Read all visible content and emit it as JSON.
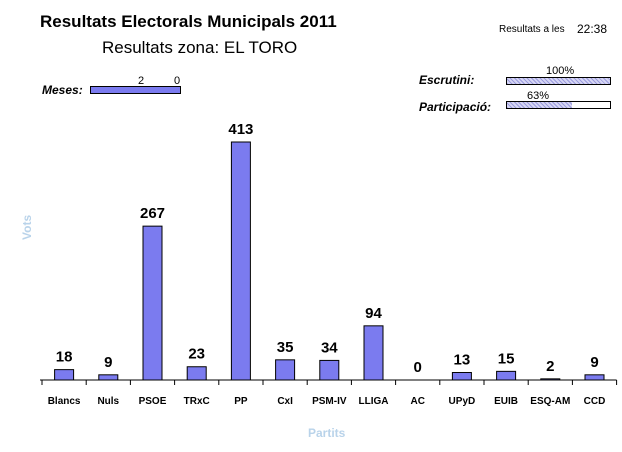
{
  "header": {
    "title": "Resultats Electorals Municipals 2011",
    "subtitle": "Resultats zona: EL TORO",
    "time_label": "Resultats a les",
    "time_value": "22:38"
  },
  "indicators": {
    "meses": {
      "label": "Meses:",
      "left_value": "2",
      "right_value": "0",
      "fraction": 1.0
    },
    "escrutini": {
      "label": "Escrutini:",
      "value": "100%",
      "fraction": 1.0
    },
    "participacio": {
      "label": "Participació:",
      "value": "63%",
      "fraction": 0.63
    }
  },
  "colors": {
    "bar": "#7b7bef",
    "axis_title": "#b9d3ea"
  },
  "chart_data": {
    "type": "bar",
    "xlabel": "Partits",
    "ylabel": "Vots",
    "categories": [
      "Blancs",
      "Nuls",
      "PSOE",
      "TRxC",
      "PP",
      "CxI",
      "PSM-IV",
      "LLIGA",
      "AC",
      "UPyD",
      "EUIB",
      "ESQ-AM",
      "CCD"
    ],
    "values": [
      18,
      9,
      267,
      23,
      413,
      35,
      34,
      94,
      0,
      13,
      15,
      2,
      9
    ],
    "ylim": [
      0,
      413
    ],
    "grid": false
  }
}
